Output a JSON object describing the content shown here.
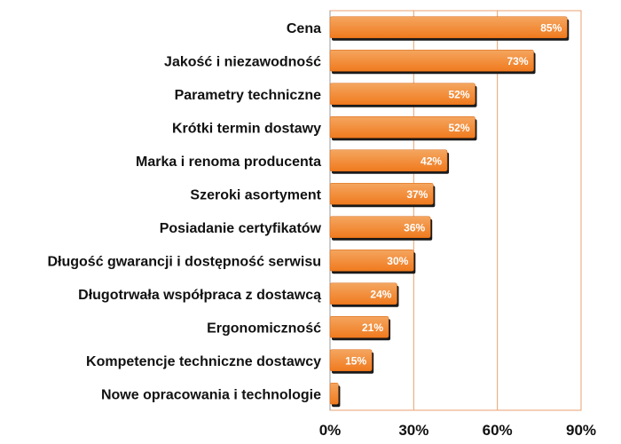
{
  "chart_data": {
    "type": "bar",
    "orientation": "horizontal",
    "title": "",
    "xlabel": "",
    "ylabel": "",
    "categories": [
      "Cena",
      "Jakość i niezawodność",
      "Parametry techniczne",
      "Krótki termin dostawy",
      "Marka i renoma producenta",
      "Szeroki asortyment",
      "Posiadanie certyfikatów",
      "Długość gwarancji i dostępność serwisu",
      "Długotrwała współpraca z dostawcą",
      "Ergonomiczność",
      "Kompetencje techniczne dostawcy",
      "Nowe opracowania i technologie"
    ],
    "values": [
      85,
      73,
      52,
      52,
      42,
      37,
      36,
      30,
      24,
      21,
      15,
      3
    ],
    "data_labels": [
      "85%",
      "73%",
      "52%",
      "52%",
      "42%",
      "37%",
      "36%",
      "30%",
      "24%",
      "21%",
      "15%",
      ""
    ],
    "xlim": [
      0,
      90
    ],
    "x_ticks": [
      0,
      30,
      60,
      90
    ],
    "x_tick_labels": [
      "0%",
      "30%",
      "60%",
      "90%"
    ],
    "grid": true,
    "colors": {
      "bar": "#f07a1e",
      "bar_light": "#f4a660",
      "bar_shadow": "#1a1a1a",
      "gridline": "#e8a070",
      "frame": "#e8a070",
      "axis": "#999999"
    }
  }
}
